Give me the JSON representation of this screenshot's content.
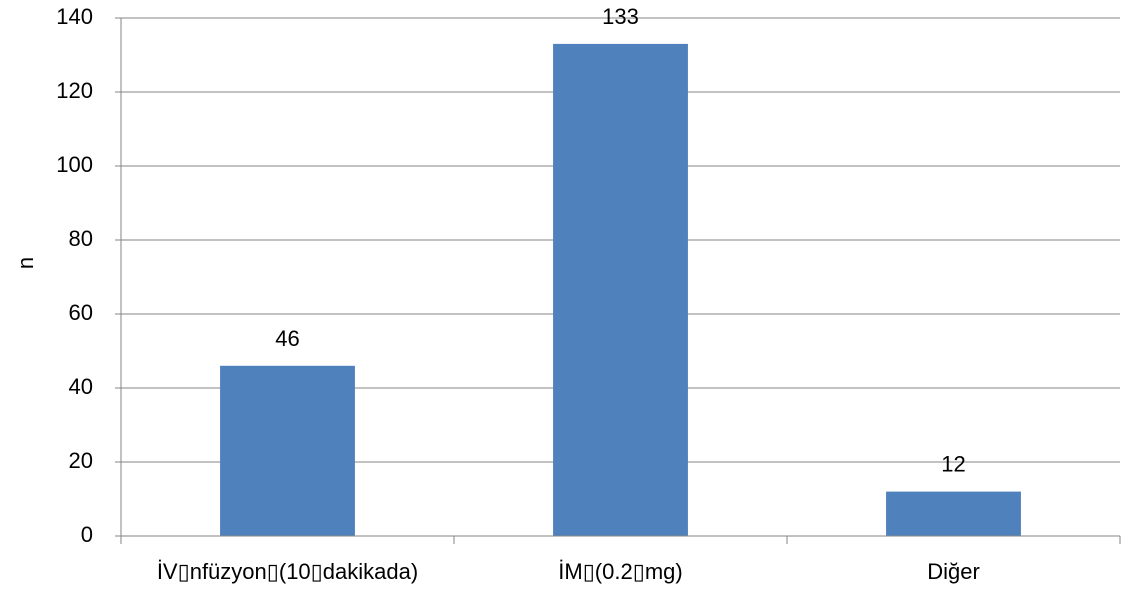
{
  "chart_data": {
    "type": "bar",
    "title": "",
    "xlabel": "",
    "ylabel": "n",
    "categories": [
      "İV▯nfüzyon▯(10▯dakikada)",
      "İM▯(0.2▯mg)",
      "Diğer"
    ],
    "values": [
      46,
      133,
      12
    ],
    "data_labels": [
      "46",
      "133",
      "12"
    ],
    "ylim": [
      0,
      140
    ],
    "yticks": [
      0,
      20,
      40,
      60,
      80,
      100,
      120,
      140
    ],
    "grid": true,
    "legend": "none",
    "bar_color": "#4f81bd",
    "grid_color": "#868686",
    "axis_color": "#868686"
  }
}
